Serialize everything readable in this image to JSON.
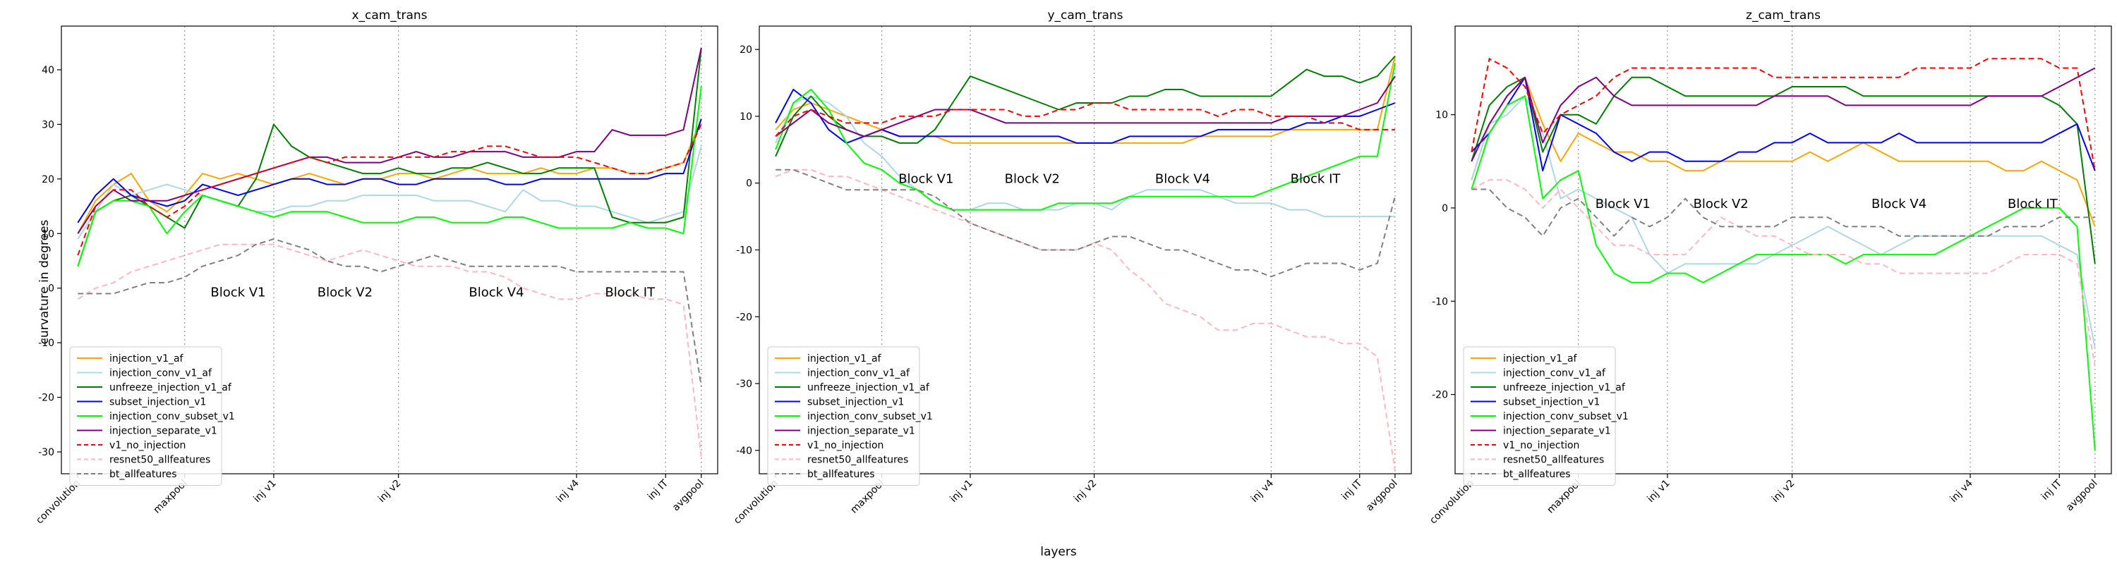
{
  "figure": {
    "xlabel": "layers",
    "ylabel": "curvature in degrees"
  },
  "legend": {
    "location": "lower-left",
    "entries": [
      {
        "key": "injection_v1_af",
        "label": "injection_v1_af",
        "color": "#ffa500",
        "dash": "solid"
      },
      {
        "key": "injection_conv_v1_af",
        "label": "injection_conv_v1_af",
        "color": "#add8e6",
        "dash": "solid"
      },
      {
        "key": "unfreeze_injection_v1_af",
        "label": "unfreeze_injection_v1_af",
        "color": "#008000",
        "dash": "solid"
      },
      {
        "key": "subset_injection_v1",
        "label": "subset_injection_v1",
        "color": "#0000ff",
        "dash": "solid"
      },
      {
        "key": "injection_conv_subset_v1",
        "label": "injection_conv_subset_v1",
        "color": "#00ff00",
        "dash": "solid"
      },
      {
        "key": "injection_separate_v1",
        "label": "injection_separate_v1",
        "color": "#800080",
        "dash": "solid"
      },
      {
        "key": "v1_no_injection",
        "label": "v1_no_injection",
        "color": "#ff0000",
        "dash": "dashed"
      },
      {
        "key": "resnet50_allfeatures",
        "label": "resnet50_allfeatures",
        "color": "#ffb6c1",
        "dash": "dashed"
      },
      {
        "key": "bt_allfeatures",
        "label": "bt_allfeatures",
        "color": "#808080",
        "dash": "dashed"
      }
    ]
  },
  "chart_data": [
    {
      "type": "line",
      "title": "x_cam_trans",
      "x_tick_labels": [
        "convolution",
        "maxpool",
        "inj v1",
        "inj v2",
        "inj v4",
        "inj IT",
        "avgpool"
      ],
      "x_tick_index": [
        0,
        6,
        11,
        18,
        28,
        33,
        35
      ],
      "vlines_index": [
        6,
        11,
        18,
        28,
        33,
        35
      ],
      "block_labels": [
        {
          "text": "Block V1",
          "x": 9,
          "y": -1.5
        },
        {
          "text": "Block V2",
          "x": 15,
          "y": -1.5
        },
        {
          "text": "Block V4",
          "x": 23.5,
          "y": -1.5
        },
        {
          "text": "Block IT",
          "x": 31,
          "y": -1.5
        }
      ],
      "ylim": [
        -34,
        48
      ],
      "yticks": [
        -30,
        -20,
        -10,
        0,
        10,
        20,
        30,
        40
      ],
      "grid": false,
      "series": {
        "injection_v1_af": [
          10,
          16,
          19,
          21,
          16,
          14,
          17,
          21,
          20,
          21,
          20,
          19,
          20,
          21,
          20,
          19,
          20,
          20,
          21,
          21,
          20,
          21,
          22,
          21,
          21,
          21,
          22,
          21,
          21,
          22,
          22,
          21,
          21,
          22,
          23,
          31
        ],
        "injection_conv_v1_af": [
          9,
          14,
          19,
          17,
          18,
          19,
          18,
          17,
          16,
          15,
          14,
          14,
          15,
          15,
          16,
          16,
          17,
          17,
          17,
          17,
          16,
          16,
          16,
          15,
          14,
          18,
          16,
          16,
          15,
          15,
          14,
          13,
          12,
          13,
          14,
          26
        ],
        "unfreeze_injection_v1_af": [
          4,
          14,
          16,
          17,
          15,
          13,
          11,
          17,
          16,
          15,
          20,
          30,
          26,
          24,
          23,
          22,
          21,
          21,
          22,
          21,
          21,
          22,
          22,
          23,
          22,
          21,
          21,
          22,
          22,
          22,
          13,
          12,
          12,
          12,
          13,
          44
        ],
        "subset_injection_v1": [
          12,
          17,
          20,
          17,
          16,
          15,
          16,
          19,
          18,
          17,
          18,
          19,
          20,
          20,
          19,
          19,
          20,
          20,
          19,
          19,
          20,
          20,
          20,
          20,
          19,
          19,
          20,
          20,
          20,
          20,
          20,
          20,
          20,
          21,
          21,
          31
        ],
        "injection_conv_subset_v1": [
          4,
          14,
          16,
          16,
          15,
          10,
          14,
          17,
          16,
          15,
          14,
          13,
          14,
          14,
          14,
          13,
          12,
          12,
          12,
          13,
          13,
          12,
          12,
          12,
          13,
          13,
          12,
          11,
          11,
          11,
          11,
          12,
          11,
          11,
          10,
          37
        ],
        "injection_separate_v1": [
          10,
          15,
          18,
          16,
          16,
          16,
          17,
          18,
          19,
          20,
          21,
          22,
          23,
          24,
          24,
          23,
          23,
          23,
          24,
          25,
          24,
          24,
          25,
          25,
          25,
          24,
          24,
          24,
          25,
          25,
          29,
          28,
          28,
          28,
          29,
          44
        ],
        "v1_no_injection": [
          6,
          15,
          18,
          18,
          15,
          13,
          15,
          18,
          19,
          20,
          21,
          22,
          23,
          24,
          23,
          24,
          24,
          24,
          24,
          24,
          24,
          25,
          25,
          26,
          26,
          25,
          24,
          24,
          24,
          23,
          22,
          21,
          21,
          22,
          23,
          30
        ],
        "resnet50_allfeatures": [
          -2,
          0,
          1,
          3,
          4,
          5,
          6,
          7,
          8,
          8,
          8,
          8,
          7,
          6,
          5,
          6,
          7,
          6,
          5,
          4,
          4,
          4,
          3,
          3,
          2,
          0,
          -1,
          -2,
          -2,
          -1,
          -1,
          -1,
          -2,
          -2,
          -3,
          -31
        ],
        "bt_allfeatures": [
          -1,
          -1,
          -1,
          0,
          1,
          1,
          2,
          4,
          5,
          6,
          8,
          9,
          8,
          7,
          5,
          4,
          4,
          3,
          4,
          5,
          6,
          5,
          4,
          4,
          4,
          4,
          4,
          4,
          3,
          3,
          3,
          3,
          3,
          3,
          3,
          -18
        ]
      }
    },
    {
      "type": "line",
      "title": "y_cam_trans",
      "x_tick_labels": [
        "convolution",
        "maxpool",
        "inj v1",
        "inj v2",
        "inj v4",
        "inj IT",
        "avgpool"
      ],
      "x_tick_index": [
        0,
        6,
        11,
        18,
        28,
        33,
        35
      ],
      "vlines_index": [
        6,
        11,
        18,
        28,
        33,
        35
      ],
      "block_labels": [
        {
          "text": "Block V1",
          "x": 8.5,
          "y": 0
        },
        {
          "text": "Block V2",
          "x": 14.5,
          "y": 0
        },
        {
          "text": "Block V4",
          "x": 23,
          "y": 0
        },
        {
          "text": "Block IT",
          "x": 30.5,
          "y": 0
        }
      ],
      "ylim": [
        -43.5,
        23.5
      ],
      "yticks": [
        -40,
        -30,
        -20,
        -10,
        0,
        10,
        20
      ],
      "grid": false,
      "series": {
        "injection_v1_af": [
          8,
          11,
          12,
          11,
          10,
          9,
          8,
          7,
          7,
          7,
          6,
          6,
          6,
          6,
          6,
          6,
          6,
          6,
          6,
          6,
          6,
          6,
          6,
          6,
          7,
          7,
          7,
          7,
          7,
          8,
          8,
          8,
          8,
          8,
          8,
          19
        ],
        "injection_conv_v1_af": [
          6,
          12,
          13,
          12,
          10,
          6,
          4,
          1,
          -1,
          -3,
          -4,
          -4,
          -3,
          -3,
          -4,
          -4,
          -4,
          -3,
          -3,
          -4,
          -2,
          -1,
          -1,
          -1,
          -1,
          -2,
          -3,
          -3,
          -3,
          -4,
          -4,
          -5,
          -5,
          -5,
          -5,
          -5
        ],
        "unfreeze_injection_v1_af": [
          4,
          10,
          13,
          10,
          8,
          7,
          7,
          6,
          6,
          8,
          12,
          16,
          15,
          14,
          13,
          12,
          11,
          12,
          12,
          12,
          13,
          13,
          14,
          14,
          13,
          13,
          13,
          13,
          13,
          15,
          17,
          16,
          16,
          15,
          16,
          19
        ],
        "subset_injection_v1": [
          9,
          14,
          12,
          8,
          6,
          7,
          8,
          7,
          7,
          7,
          7,
          7,
          7,
          7,
          7,
          7,
          7,
          6,
          6,
          6,
          7,
          7,
          7,
          7,
          7,
          8,
          8,
          8,
          8,
          8,
          9,
          9,
          10,
          10,
          11,
          12
        ],
        "injection_conv_subset_v1": [
          5,
          12,
          14,
          11,
          6,
          3,
          2,
          0,
          -1,
          -3,
          -4,
          -4,
          -4,
          -4,
          -4,
          -4,
          -3,
          -3,
          -3,
          -3,
          -2,
          -2,
          -2,
          -2,
          -2,
          -2,
          -2,
          -2,
          -1,
          0,
          1,
          2,
          3,
          4,
          4,
          18
        ],
        "injection_separate_v1": [
          7,
          9,
          11,
          9,
          8,
          7,
          8,
          9,
          10,
          11,
          11,
          11,
          10,
          9,
          9,
          9,
          9,
          9,
          9,
          9,
          9,
          9,
          9,
          9,
          9,
          9,
          9,
          9,
          9,
          10,
          10,
          10,
          10,
          11,
          12,
          16
        ],
        "v1_no_injection": [
          7,
          10,
          11,
          10,
          9,
          9,
          9,
          10,
          10,
          10,
          11,
          11,
          11,
          11,
          10,
          10,
          11,
          11,
          12,
          12,
          11,
          11,
          11,
          11,
          11,
          10,
          11,
          11,
          10,
          10,
          10,
          9,
          9,
          8,
          8,
          8
        ],
        "resnet50_allfeatures": [
          1,
          2,
          2,
          1,
          1,
          0,
          -1,
          -2,
          -3,
          -4,
          -5,
          -6,
          -7,
          -8,
          -9,
          -10,
          -10,
          -10,
          -9,
          -10,
          -13,
          -15,
          -18,
          -19,
          -20,
          -22,
          -22,
          -21,
          -21,
          -22,
          -23,
          -23,
          -24,
          -24,
          -26,
          -43
        ],
        "bt_allfeatures": [
          2,
          2,
          1,
          0,
          -1,
          -1,
          -1,
          -1,
          -1,
          -2,
          -4,
          -6,
          -7,
          -8,
          -9,
          -10,
          -10,
          -10,
          -9,
          -8,
          -8,
          -9,
          -10,
          -10,
          -11,
          -12,
          -13,
          -13,
          -14,
          -13,
          -12,
          -12,
          -12,
          -13,
          -12,
          -2
        ]
      }
    },
    {
      "type": "line",
      "title": "z_cam_trans",
      "x_tick_labels": [
        "convolution",
        "maxpool",
        "inj v1",
        "inj v2",
        "inj v4",
        "inj IT",
        "avgpool"
      ],
      "x_tick_index": [
        0,
        6,
        11,
        18,
        28,
        33,
        35
      ],
      "vlines_index": [
        6,
        11,
        18,
        28,
        33,
        35
      ],
      "block_labels": [
        {
          "text": "Block V1",
          "x": 8.5,
          "y": 0
        },
        {
          "text": "Block V2",
          "x": 14,
          "y": 0
        },
        {
          "text": "Block V4",
          "x": 24,
          "y": 0
        },
        {
          "text": "Block IT",
          "x": 31.5,
          "y": 0
        }
      ],
      "ylim": [
        -28.5,
        19.5
      ],
      "yticks": [
        -20,
        -10,
        0,
        10
      ],
      "grid": false,
      "series": {
        "injection_v1_af": [
          3,
          9,
          12,
          14,
          9,
          5,
          8,
          7,
          6,
          6,
          5,
          5,
          4,
          4,
          5,
          5,
          5,
          5,
          5,
          6,
          5,
          6,
          7,
          6,
          5,
          5,
          5,
          5,
          5,
          5,
          4,
          4,
          5,
          4,
          3,
          -2
        ],
        "injection_conv_v1_af": [
          3,
          9,
          10,
          12,
          8,
          1,
          2,
          1,
          0,
          -1,
          -5,
          -7,
          -6,
          -6,
          -6,
          -6,
          -6,
          -5,
          -4,
          -3,
          -2,
          -3,
          -4,
          -5,
          -4,
          -3,
          -3,
          -3,
          -3,
          -3,
          -3,
          -3,
          -3,
          -4,
          -5,
          -15
        ],
        "unfreeze_injection_v1_af": [
          5,
          11,
          13,
          14,
          6,
          10,
          10,
          9,
          12,
          14,
          14,
          13,
          12,
          12,
          12,
          12,
          12,
          12,
          13,
          13,
          13,
          13,
          12,
          12,
          12,
          12,
          12,
          12,
          12,
          12,
          12,
          12,
          12,
          11,
          9,
          -6
        ],
        "subset_injection_v1": [
          6,
          8,
          11,
          14,
          4,
          10,
          9,
          8,
          6,
          5,
          6,
          6,
          5,
          5,
          5,
          6,
          6,
          7,
          7,
          8,
          7,
          7,
          7,
          7,
          8,
          7,
          7,
          7,
          7,
          7,
          7,
          7,
          7,
          8,
          9,
          4
        ],
        "injection_conv_subset_v1": [
          2,
          8,
          11,
          12,
          1,
          3,
          4,
          -4,
          -7,
          -8,
          -8,
          -7,
          -7,
          -8,
          -7,
          -6,
          -5,
          -5,
          -5,
          -5,
          -5,
          -6,
          -5,
          -5,
          -5,
          -5,
          -5,
          -4,
          -3,
          -2,
          -1,
          0,
          0,
          0,
          -2,
          -26
        ],
        "injection_separate_v1": [
          5,
          9,
          12,
          14,
          7,
          11,
          13,
          14,
          12,
          11,
          11,
          11,
          11,
          11,
          11,
          11,
          11,
          12,
          12,
          12,
          12,
          11,
          11,
          11,
          11,
          11,
          11,
          11,
          11,
          12,
          12,
          12,
          12,
          13,
          14,
          15
        ],
        "v1_no_injection": [
          6,
          16,
          15,
          13,
          8,
          10,
          11,
          12,
          14,
          15,
          15,
          15,
          15,
          15,
          15,
          15,
          15,
          14,
          14,
          14,
          14,
          14,
          14,
          14,
          14,
          15,
          15,
          15,
          15,
          16,
          16,
          16,
          16,
          15,
          15,
          4
        ],
        "resnet50_allfeatures": [
          2,
          3,
          3,
          2,
          0,
          2,
          0,
          -2,
          -4,
          -4,
          -5,
          -5,
          -5,
          -3,
          -1,
          -2,
          -3,
          -3,
          -4,
          -5,
          -5,
          -5,
          -6,
          -6,
          -7,
          -7,
          -7,
          -7,
          -7,
          -7,
          -6,
          -5,
          -5,
          -5,
          -6,
          -17
        ],
        "bt_allfeatures": [
          2,
          2,
          0,
          -1,
          -3,
          0,
          1,
          -1,
          -3,
          -1,
          -2,
          -1,
          1,
          -1,
          -2,
          -2,
          -2,
          -2,
          -1,
          -1,
          -1,
          -2,
          -2,
          -2,
          -3,
          -3,
          -3,
          -3,
          -3,
          -3,
          -2,
          -2,
          -2,
          -1,
          -1,
          -1
        ]
      }
    }
  ]
}
